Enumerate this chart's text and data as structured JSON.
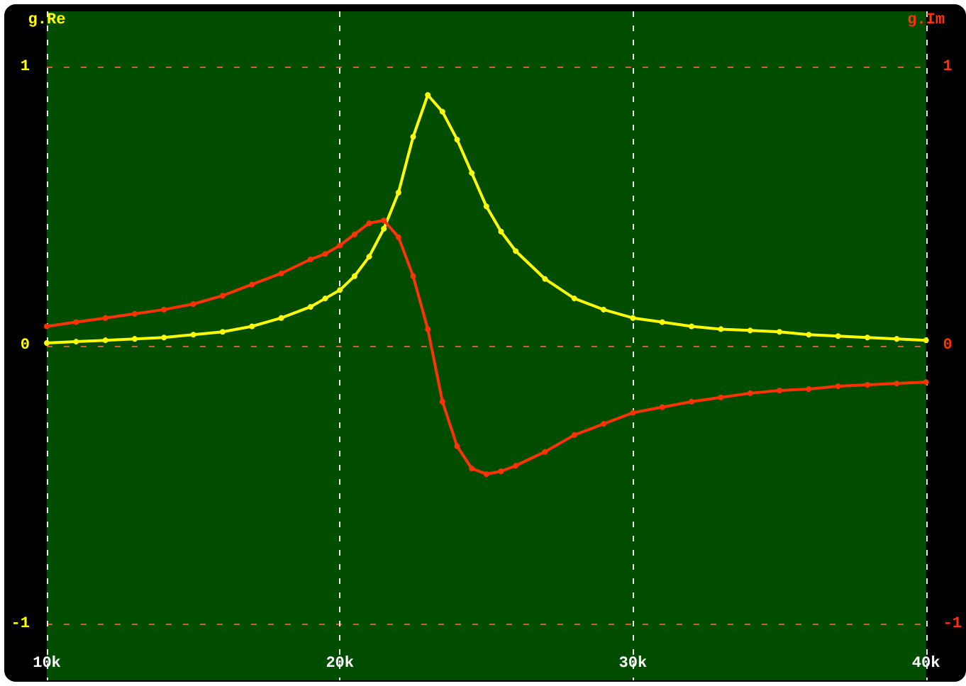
{
  "chart_data": {
    "type": "line",
    "ylabel": "g.Re",
    "y2label": "g.Im",
    "x": [
      10000,
      11000,
      12000,
      13000,
      14000,
      15000,
      16000,
      17000,
      18000,
      19000,
      19500,
      20000,
      20500,
      21000,
      21500,
      22000,
      22500,
      23000,
      23500,
      24000,
      24500,
      25000,
      25500,
      26000,
      27000,
      28000,
      29000,
      30000,
      31000,
      32000,
      33000,
      34000,
      35000,
      36000,
      37000,
      38000,
      39000,
      40000
    ],
    "series": [
      {
        "color": "#ffff00",
        "values": [
          0.01,
          0.015,
          0.02,
          0.025,
          0.03,
          0.04,
          0.05,
          0.07,
          0.1,
          0.14,
          0.17,
          0.2,
          0.25,
          0.32,
          0.42,
          0.55,
          0.75,
          0.9,
          0.84,
          0.74,
          0.62,
          0.5,
          0.41,
          0.34,
          0.24,
          0.17,
          0.13,
          0.1,
          0.085,
          0.07,
          0.06,
          0.055,
          0.05,
          0.04,
          0.035,
          0.03,
          0.025,
          0.02
        ]
      },
      {
        "color": "#ff3300",
        "axis": "y2",
        "values": [
          0.07,
          0.085,
          0.1,
          0.115,
          0.13,
          0.15,
          0.18,
          0.22,
          0.26,
          0.31,
          0.33,
          0.36,
          0.4,
          0.44,
          0.45,
          0.39,
          0.25,
          0.06,
          -0.2,
          -0.36,
          -0.44,
          -0.46,
          -0.45,
          -0.43,
          -0.38,
          -0.32,
          -0.28,
          -0.24,
          -0.22,
          -0.2,
          -0.185,
          -0.17,
          -0.16,
          -0.155,
          -0.145,
          -0.14,
          -0.135,
          -0.13
        ]
      }
    ],
    "xlim": [
      10000,
      40000
    ],
    "xticks": [
      {
        "value": 10000,
        "label": "10k"
      },
      {
        "value": 20000,
        "label": "20k"
      },
      {
        "value": 30000,
        "label": "30k"
      },
      {
        "value": 40000,
        "label": "40k"
      }
    ],
    "ylim": [
      -1.2,
      1.2
    ],
    "yticks": [
      -1,
      0,
      1
    ],
    "y2lim": [
      -1.2,
      1.2
    ],
    "y2ticks": [
      -1,
      0,
      1
    ],
    "grid": true,
    "marker": "circle",
    "line_style": "solid"
  }
}
